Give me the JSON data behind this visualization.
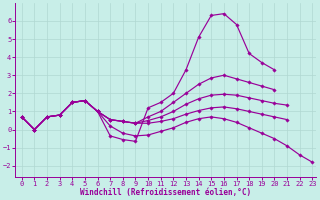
{
  "xlabel": "Windchill (Refroidissement éolien,°C)",
  "bg_color": "#c8eee8",
  "grid_color": "#b0d8d2",
  "line_color": "#990099",
  "xlim": [
    -0.5,
    23.3
  ],
  "ylim": [
    -2.6,
    7.0
  ],
  "xticks": [
    0,
    1,
    2,
    3,
    4,
    5,
    6,
    7,
    8,
    9,
    10,
    11,
    12,
    13,
    14,
    15,
    16,
    17,
    18,
    19,
    20,
    21,
    22,
    23
  ],
  "yticks": [
    -2,
    -1,
    0,
    1,
    2,
    3,
    4,
    5,
    6
  ],
  "series": [
    {
      "x": [
        0,
        1,
        2,
        3,
        4,
        5,
        6,
        7,
        8,
        9,
        10,
        11,
        12,
        13,
        14,
        15,
        16,
        17,
        18,
        19,
        20
      ],
      "y": [
        0.7,
        0.0,
        0.7,
        0.8,
        1.5,
        1.6,
        1.0,
        -0.35,
        -0.55,
        -0.65,
        1.2,
        1.5,
        2.0,
        3.3,
        5.1,
        6.3,
        6.4,
        5.8,
        4.2,
        3.7,
        3.3
      ]
    },
    {
      "x": [
        0,
        1,
        2,
        3,
        4,
        5,
        6,
        7,
        8,
        9,
        10,
        11,
        12,
        13,
        14,
        15,
        16,
        17,
        18,
        19,
        20
      ],
      "y": [
        0.7,
        0.0,
        0.7,
        0.8,
        1.5,
        1.6,
        1.0,
        0.55,
        0.45,
        0.35,
        0.7,
        1.0,
        1.5,
        2.0,
        2.5,
        2.85,
        3.0,
        2.8,
        2.6,
        2.4,
        2.2
      ]
    },
    {
      "x": [
        0,
        1,
        2,
        3,
        4,
        5,
        6,
        7,
        8,
        9,
        10,
        11,
        12,
        13,
        14,
        15,
        16,
        17,
        18,
        19,
        20,
        21
      ],
      "y": [
        0.7,
        0.0,
        0.7,
        0.8,
        1.5,
        1.6,
        1.0,
        0.55,
        0.45,
        0.35,
        0.5,
        0.7,
        1.0,
        1.4,
        1.7,
        1.9,
        1.95,
        1.9,
        1.75,
        1.6,
        1.45,
        1.35
      ]
    },
    {
      "x": [
        0,
        1,
        2,
        3,
        4,
        5,
        6,
        7,
        8,
        9,
        10,
        11,
        12,
        13,
        14,
        15,
        16,
        17,
        18,
        19,
        20,
        21
      ],
      "y": [
        0.7,
        0.0,
        0.7,
        0.8,
        1.5,
        1.6,
        1.0,
        0.55,
        0.45,
        0.35,
        0.35,
        0.45,
        0.6,
        0.85,
        1.05,
        1.2,
        1.25,
        1.15,
        1.0,
        0.85,
        0.7,
        0.55
      ]
    },
    {
      "x": [
        0,
        1,
        2,
        3,
        4,
        5,
        6,
        7,
        8,
        9,
        10,
        11,
        12,
        13,
        14,
        15,
        16,
        17,
        18,
        19,
        20,
        21,
        22,
        23
      ],
      "y": [
        0.7,
        0.0,
        0.7,
        0.8,
        1.5,
        1.6,
        1.0,
        0.2,
        -0.2,
        -0.35,
        -0.3,
        -0.1,
        0.1,
        0.4,
        0.6,
        0.7,
        0.6,
        0.4,
        0.1,
        -0.2,
        -0.5,
        -0.9,
        -1.4,
        -1.8
      ]
    }
  ]
}
